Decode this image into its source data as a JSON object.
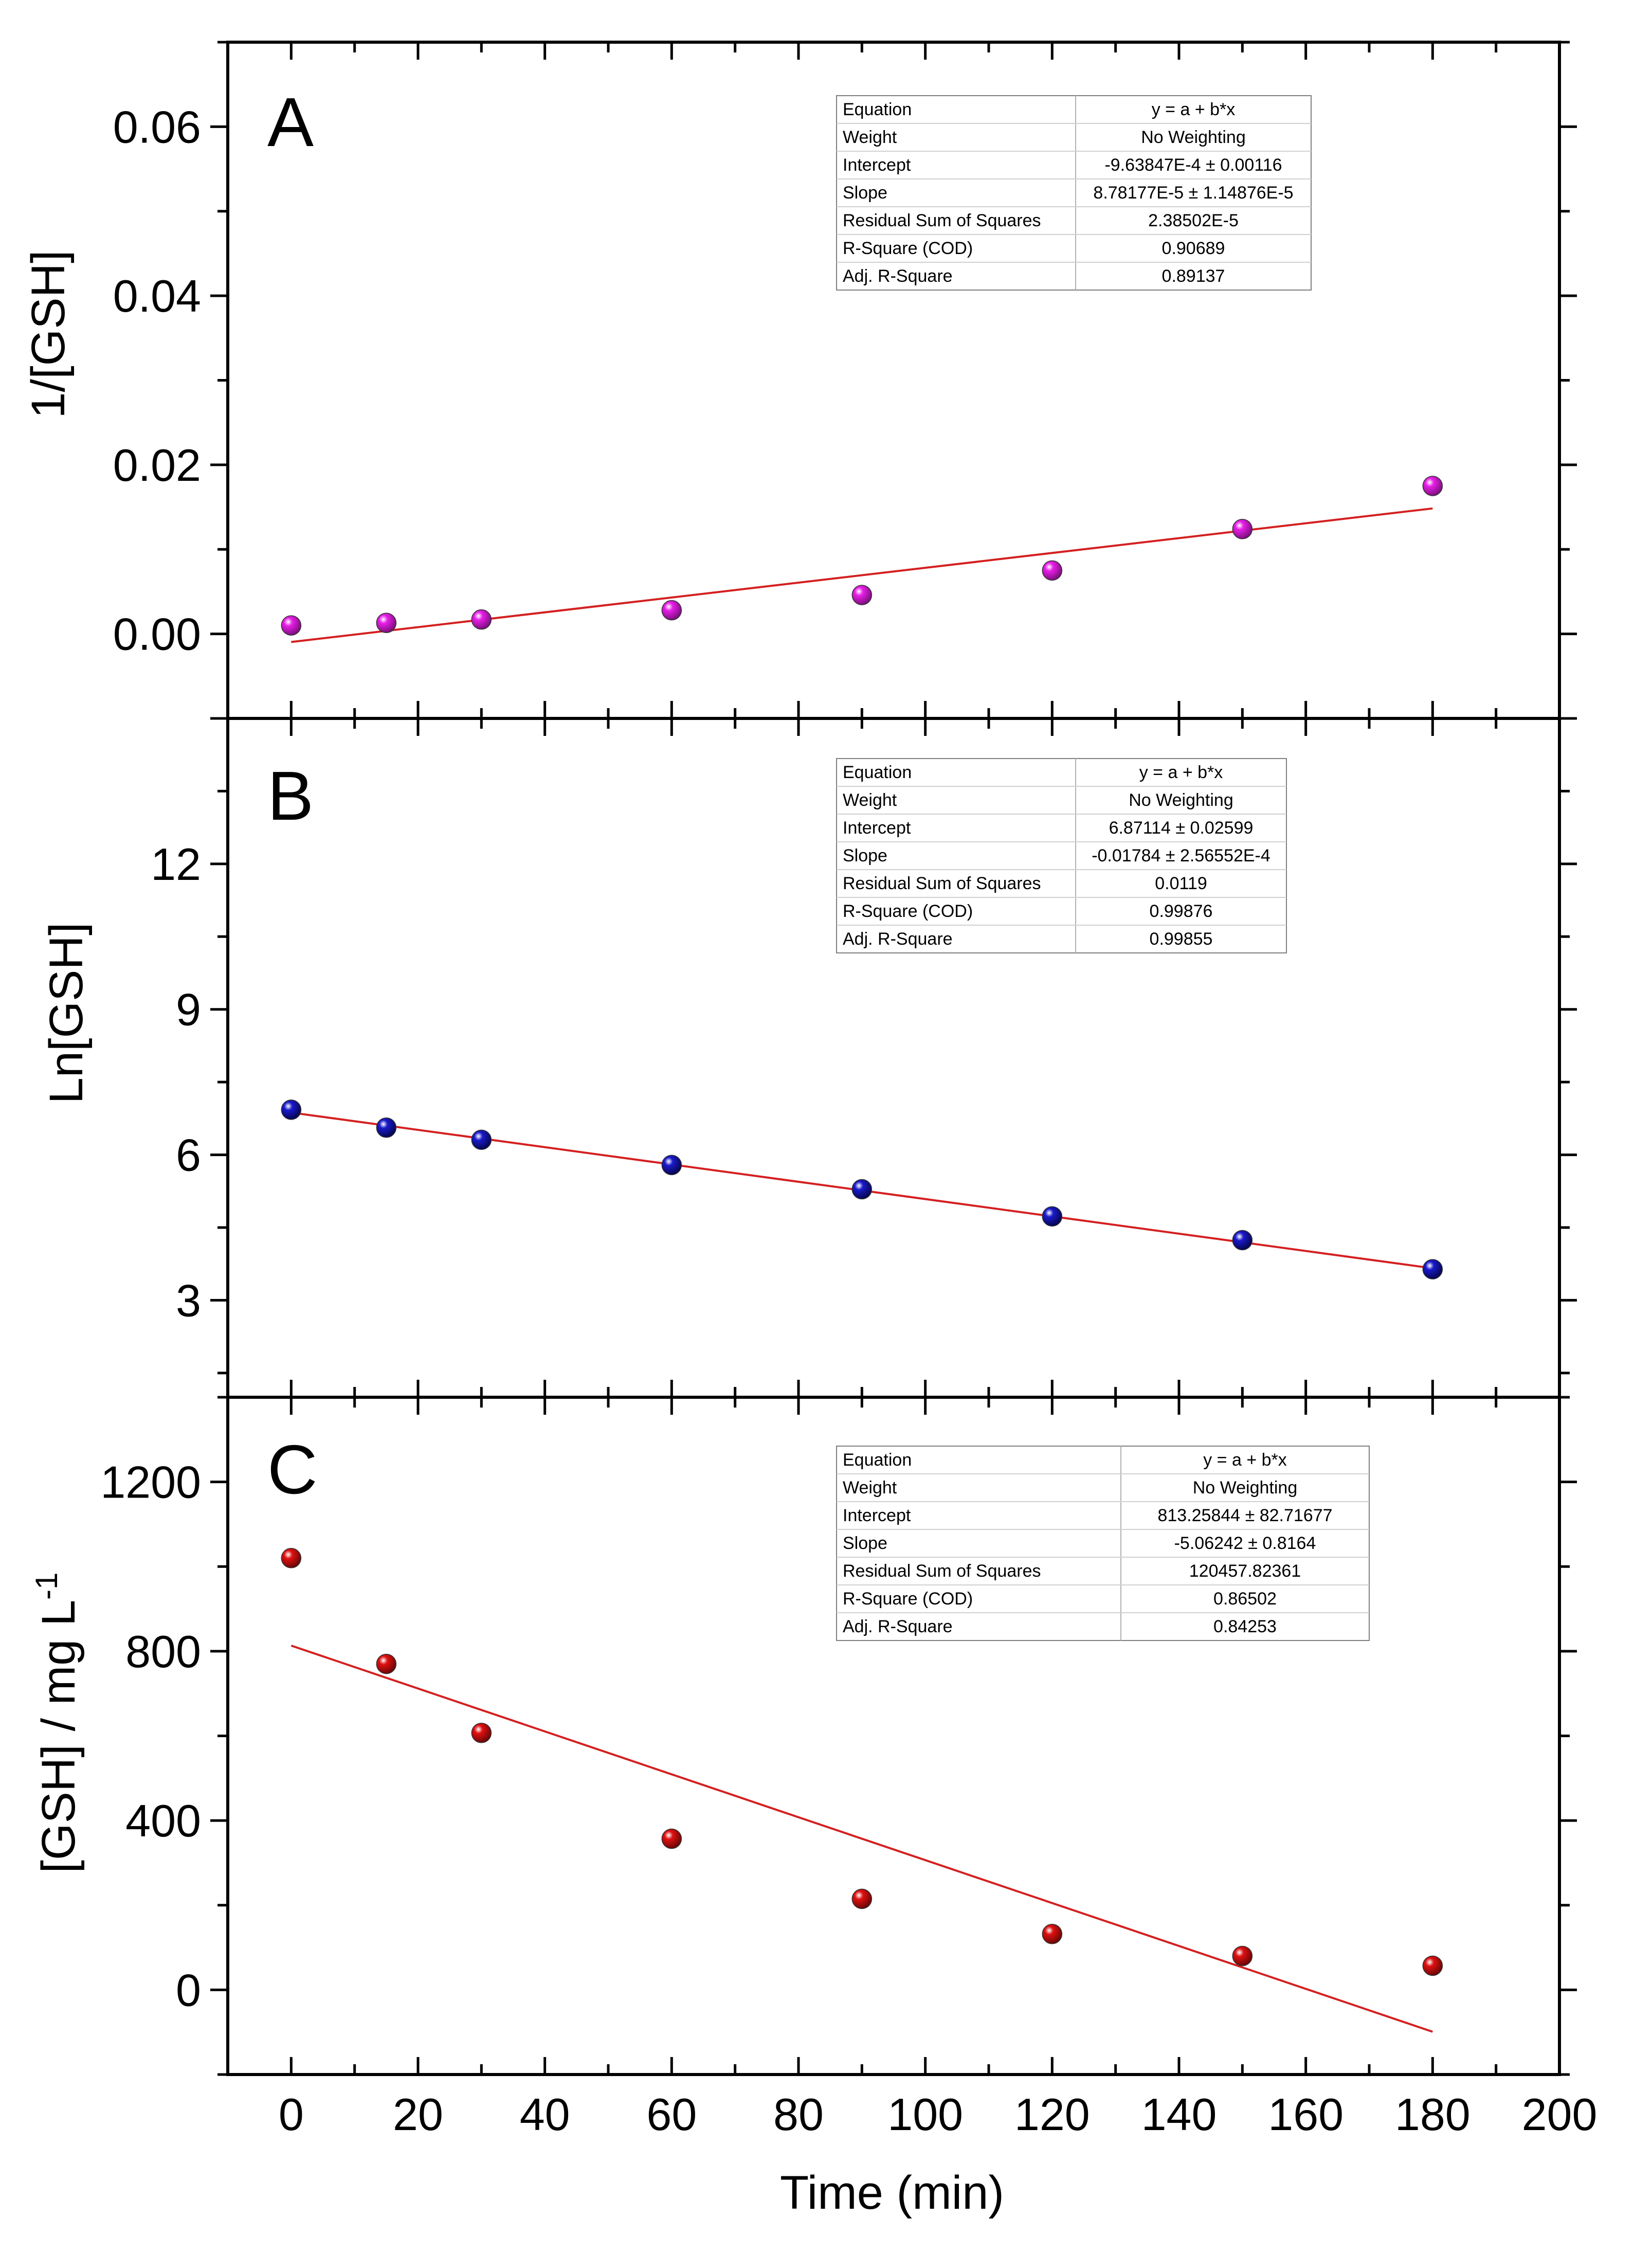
{
  "figure": {
    "x_axis_label": "Time (min)",
    "x_ticks": [
      "0",
      "20",
      "40",
      "60",
      "80",
      "100",
      "120",
      "140",
      "160",
      "180",
      "200"
    ]
  },
  "panels": [
    {
      "letter": "A",
      "ylabel": "1/[GSH]",
      "yticks": [
        "0.00",
        "0.02",
        "0.04",
        "0.06"
      ],
      "point_color": "#e81ee8",
      "fit_line_color": "#d42020",
      "fit_table": [
        [
          "Equation",
          "y = a + b*x"
        ],
        [
          "Weight",
          "No Weighting"
        ],
        [
          "Intercept",
          "-9.63847E-4 ± 0.00116"
        ],
        [
          "Slope",
          "8.78177E-5 ± 1.14876E-5"
        ],
        [
          "Residual Sum of Squares",
          "2.38502E-5"
        ],
        [
          "R-Square (COD)",
          "0.90689"
        ],
        [
          "Adj. R-Square",
          "0.89137"
        ]
      ]
    },
    {
      "letter": "B",
      "ylabel": "Ln[GSH]",
      "yticks": [
        "3",
        "6",
        "9",
        "12"
      ],
      "point_color": "#1a1acc",
      "fit_line_color": "#d42020",
      "fit_table": [
        [
          "Equation",
          "y = a + b*x"
        ],
        [
          "Weight",
          "No Weighting"
        ],
        [
          "Intercept",
          "6.87114 ± 0.02599"
        ],
        [
          "Slope",
          "-0.01784 ± 2.56552E-4"
        ],
        [
          "Residual Sum of Squares",
          "0.0119"
        ],
        [
          "R-Square (COD)",
          "0.99876"
        ],
        [
          "Adj. R-Square",
          "0.99855"
        ]
      ]
    },
    {
      "letter": "C",
      "ylabel_main": "[GSH] / mg L",
      "ylabel_sup": "-1",
      "yticks": [
        "0",
        "400",
        "800",
        "1200"
      ],
      "point_color": "#e01010",
      "fit_line_color": "#d42020",
      "fit_table": [
        [
          "Equation",
          "y = a + b*x"
        ],
        [
          "Weight",
          "No Weighting"
        ],
        [
          "Intercept",
          "813.25844 ± 82.71677"
        ],
        [
          "Slope",
          "-5.06242 ± 0.8164"
        ],
        [
          "Residual Sum of Squares",
          "120457.82361"
        ],
        [
          "R-Square (COD)",
          "0.86502"
        ],
        [
          "Adj. R-Square",
          "0.84253"
        ]
      ]
    }
  ],
  "chart_data": [
    {
      "type": "scatter",
      "xlabel": "Time (min)",
      "ylabel": "1/[GSH]",
      "xlim": [
        -10,
        200
      ],
      "ylim": [
        -0.01,
        0.07
      ],
      "grid": false,
      "series": [
        {
          "x": [
            0,
            15,
            30,
            60,
            90,
            120,
            150,
            180
          ],
          "y": [
            0.001,
            0.0013,
            0.0017,
            0.0028,
            0.0046,
            0.0075,
            0.0124,
            0.0175
          ]
        }
      ],
      "fit_line": {
        "x": [
          0,
          180
        ],
        "y": [
          -0.00096,
          0.01484
        ]
      }
    },
    {
      "type": "scatter",
      "xlabel": "Time (min)",
      "ylabel": "Ln[GSH]",
      "xlim": [
        -10,
        200
      ],
      "ylim": [
        1.0,
        15.0
      ],
      "grid": false,
      "series": [
        {
          "x": [
            0,
            15,
            30,
            60,
            90,
            120,
            150,
            180
          ],
          "y": [
            6.93,
            6.56,
            6.31,
            5.79,
            5.29,
            4.73,
            4.24,
            3.64
          ]
        }
      ],
      "fit_line": {
        "x": [
          0,
          180
        ],
        "y": [
          6.871,
          3.66
        ]
      }
    },
    {
      "type": "scatter",
      "xlabel": "Time (min)",
      "ylabel": "[GSH] / mg L-1",
      "xlim": [
        -10,
        200
      ],
      "ylim": [
        -200,
        1400
      ],
      "grid": false,
      "series": [
        {
          "x": [
            0,
            15,
            30,
            60,
            90,
            120,
            150,
            180
          ],
          "y": [
            1020,
            770,
            607,
            357,
            215,
            132,
            80,
            57
          ]
        }
      ],
      "fit_line": {
        "x": [
          0,
          180
        ],
        "y": [
          813.26,
          -98.98
        ]
      }
    }
  ]
}
